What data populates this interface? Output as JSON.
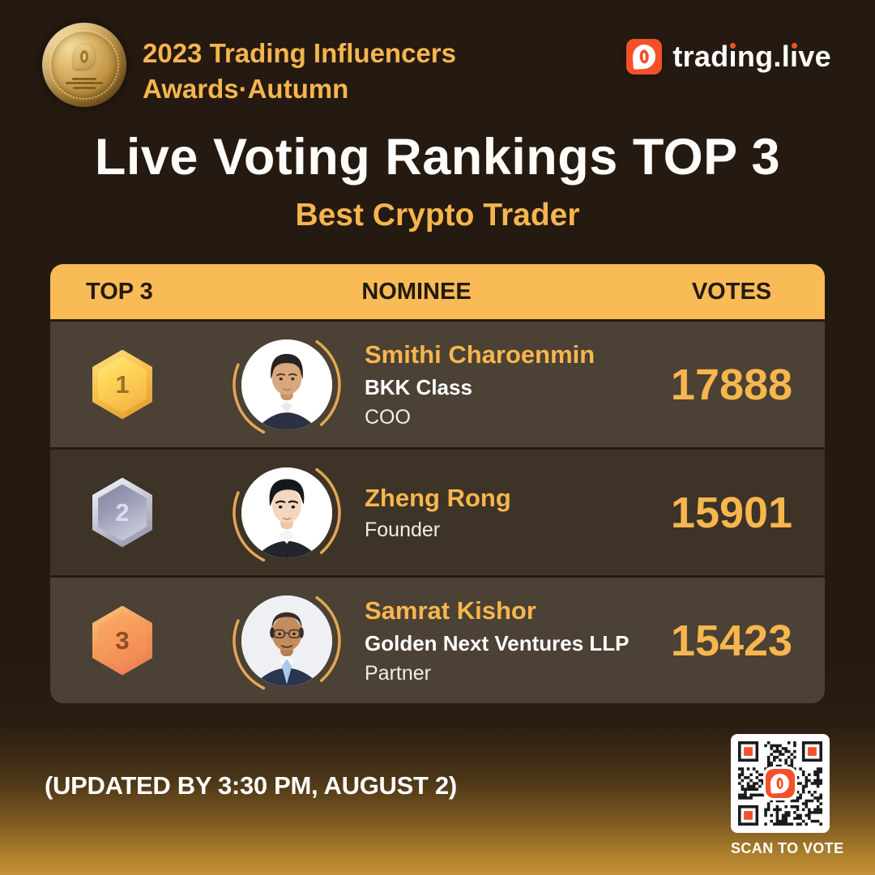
{
  "brand": {
    "event_line1": "2023 Trading Influencers",
    "event_line2": "Awards·Autumn",
    "logo_text": "trading.live",
    "accent_orange": "#F4502A",
    "gold": "#F6B54E",
    "header_amber": "#F8BB55"
  },
  "title": "Live Voting Rankings TOP 3",
  "subtitle": "Best Crypto Trader",
  "table": {
    "headers": [
      "TOP 3",
      "NOMINEE",
      "VOTES"
    ],
    "rows": [
      {
        "rank": "1",
        "medal": "gold",
        "name": "Smithi Charoenmin",
        "org": "BKK Class",
        "role": "COO",
        "votes": "17888"
      },
      {
        "rank": "2",
        "medal": "silver",
        "name": "Zheng Rong",
        "org": "",
        "role": "Founder",
        "votes": "15901"
      },
      {
        "rank": "3",
        "medal": "bronze",
        "name": "Samrat Kishor",
        "org": "Golden Next Ventures LLP",
        "role": "Partner",
        "votes": "15423"
      }
    ]
  },
  "footer": {
    "updated": "(UPDATED BY 3:30 PM, AUGUST 2)",
    "scan_label": "SCAN TO VOTE"
  },
  "chart_data": {
    "type": "table",
    "title": "Live Voting Rankings TOP 3",
    "subtitle": "Best Crypto Trader",
    "columns": [
      "TOP 3",
      "NOMINEE",
      "VOTES"
    ],
    "rows": [
      {
        "rank": 1,
        "name": "Smithi Charoenmin",
        "organization": "BKK Class",
        "role": "COO",
        "votes": 17888
      },
      {
        "rank": 2,
        "name": "Zheng Rong",
        "organization": "",
        "role": "Founder",
        "votes": 15901
      },
      {
        "rank": 3,
        "name": "Samrat Kishor",
        "organization": "Golden Next Ventures LLP",
        "role": "Partner",
        "votes": 15423
      }
    ]
  }
}
